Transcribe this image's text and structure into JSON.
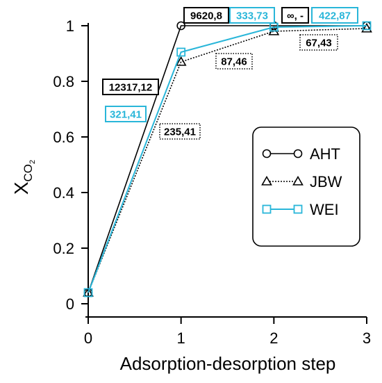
{
  "chart_data": {
    "type": "line",
    "xlabel": "Adsorption-desorption step",
    "ylabel_main": "X",
    "ylabel_sub": "CO",
    "ylabel_subsub": "2",
    "xlim": [
      0,
      3
    ],
    "ylim": [
      0,
      1
    ],
    "xticks": [
      "0",
      "1",
      "2",
      "3"
    ],
    "yticks": [
      "0",
      "0.2",
      "0.4",
      "0.6",
      "0.8",
      "1"
    ],
    "legend_position": "center-right",
    "series": [
      {
        "name": "AHT",
        "color": "#000000",
        "marker": "circle",
        "dash": "solid",
        "x": [
          0,
          1,
          2,
          3
        ],
        "y": [
          0.04,
          1.0,
          1.0,
          1.0
        ]
      },
      {
        "name": "JBW",
        "color": "#000000",
        "marker": "triangle",
        "dash": "dotted",
        "x": [
          0,
          1,
          2,
          3
        ],
        "y": [
          0.04,
          0.87,
          0.98,
          0.99
        ]
      },
      {
        "name": "WEI",
        "color": "#29b6d9",
        "marker": "square",
        "dash": "solid",
        "x": [
          0,
          1,
          2,
          3
        ],
        "y": [
          0.04,
          0.905,
          0.995,
          1.0
        ]
      }
    ],
    "annotations": [
      {
        "text": "12317,12",
        "color": "#000000",
        "style": "solid"
      },
      {
        "text": "321,41",
        "color": "#29b6d9",
        "style": "solid"
      },
      {
        "text": "235,41",
        "color": "#000000",
        "style": "dotted"
      },
      {
        "text": "9620,8",
        "color": "#000000",
        "style": "solid"
      },
      {
        "text": "333,73",
        "color": "#29b6d9",
        "style": "solid"
      },
      {
        "text": "87,46",
        "color": "#000000",
        "style": "dotted"
      },
      {
        "text": "∞, -",
        "color": "#000000",
        "style": "solid"
      },
      {
        "text": "422,87",
        "color": "#29b6d9",
        "style": "solid"
      },
      {
        "text": "67,43",
        "color": "#000000",
        "style": "dotted"
      }
    ]
  }
}
